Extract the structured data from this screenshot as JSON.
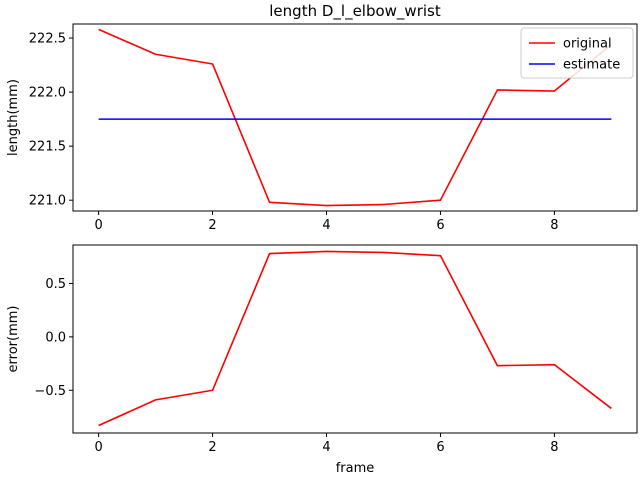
{
  "chart_data": [
    {
      "type": "line",
      "title": "length D_l_elbow_wrist",
      "xlabel": "",
      "ylabel": "length(mm)",
      "xlim": [
        -0.45,
        9.45
      ],
      "ylim": [
        220.9,
        222.63
      ],
      "xticks": [
        0,
        2,
        4,
        6,
        8
      ],
      "xtick_labels": [
        "0",
        "2",
        "4",
        "6",
        "8"
      ],
      "yticks": [
        221.0,
        221.5,
        222.0,
        222.5
      ],
      "ytick_labels": [
        "221.0",
        "221.5",
        "222.0",
        "222.5"
      ],
      "legend_position": "top-right",
      "series": [
        {
          "name": "original",
          "color": "#ff0000",
          "x": [
            0,
            1,
            2,
            3,
            4,
            5,
            6,
            7,
            8,
            9
          ],
          "y": [
            222.58,
            222.35,
            222.26,
            220.98,
            220.95,
            220.96,
            221.0,
            222.02,
            222.01,
            222.44
          ]
        },
        {
          "name": "estimate",
          "color": "#0000ff",
          "x": [
            0,
            9
          ],
          "y": [
            221.75,
            221.75
          ]
        }
      ]
    },
    {
      "type": "line",
      "title": "",
      "xlabel": "frame",
      "ylabel": "error(mm)",
      "xlim": [
        -0.45,
        9.45
      ],
      "ylim": [
        -0.9,
        0.86
      ],
      "xticks": [
        0,
        2,
        4,
        6,
        8
      ],
      "xtick_labels": [
        "0",
        "2",
        "4",
        "6",
        "8"
      ],
      "yticks": [
        -0.5,
        0.0,
        0.5
      ],
      "ytick_labels": [
        "−0.5",
        "0.0",
        "0.5"
      ],
      "series": [
        {
          "name": "error",
          "color": "#ff0000",
          "x": [
            0,
            1,
            2,
            3,
            4,
            5,
            6,
            7,
            8,
            9
          ],
          "y": [
            -0.83,
            -0.59,
            -0.5,
            0.78,
            0.8,
            0.79,
            0.76,
            -0.27,
            -0.26,
            -0.67
          ]
        }
      ]
    }
  ]
}
